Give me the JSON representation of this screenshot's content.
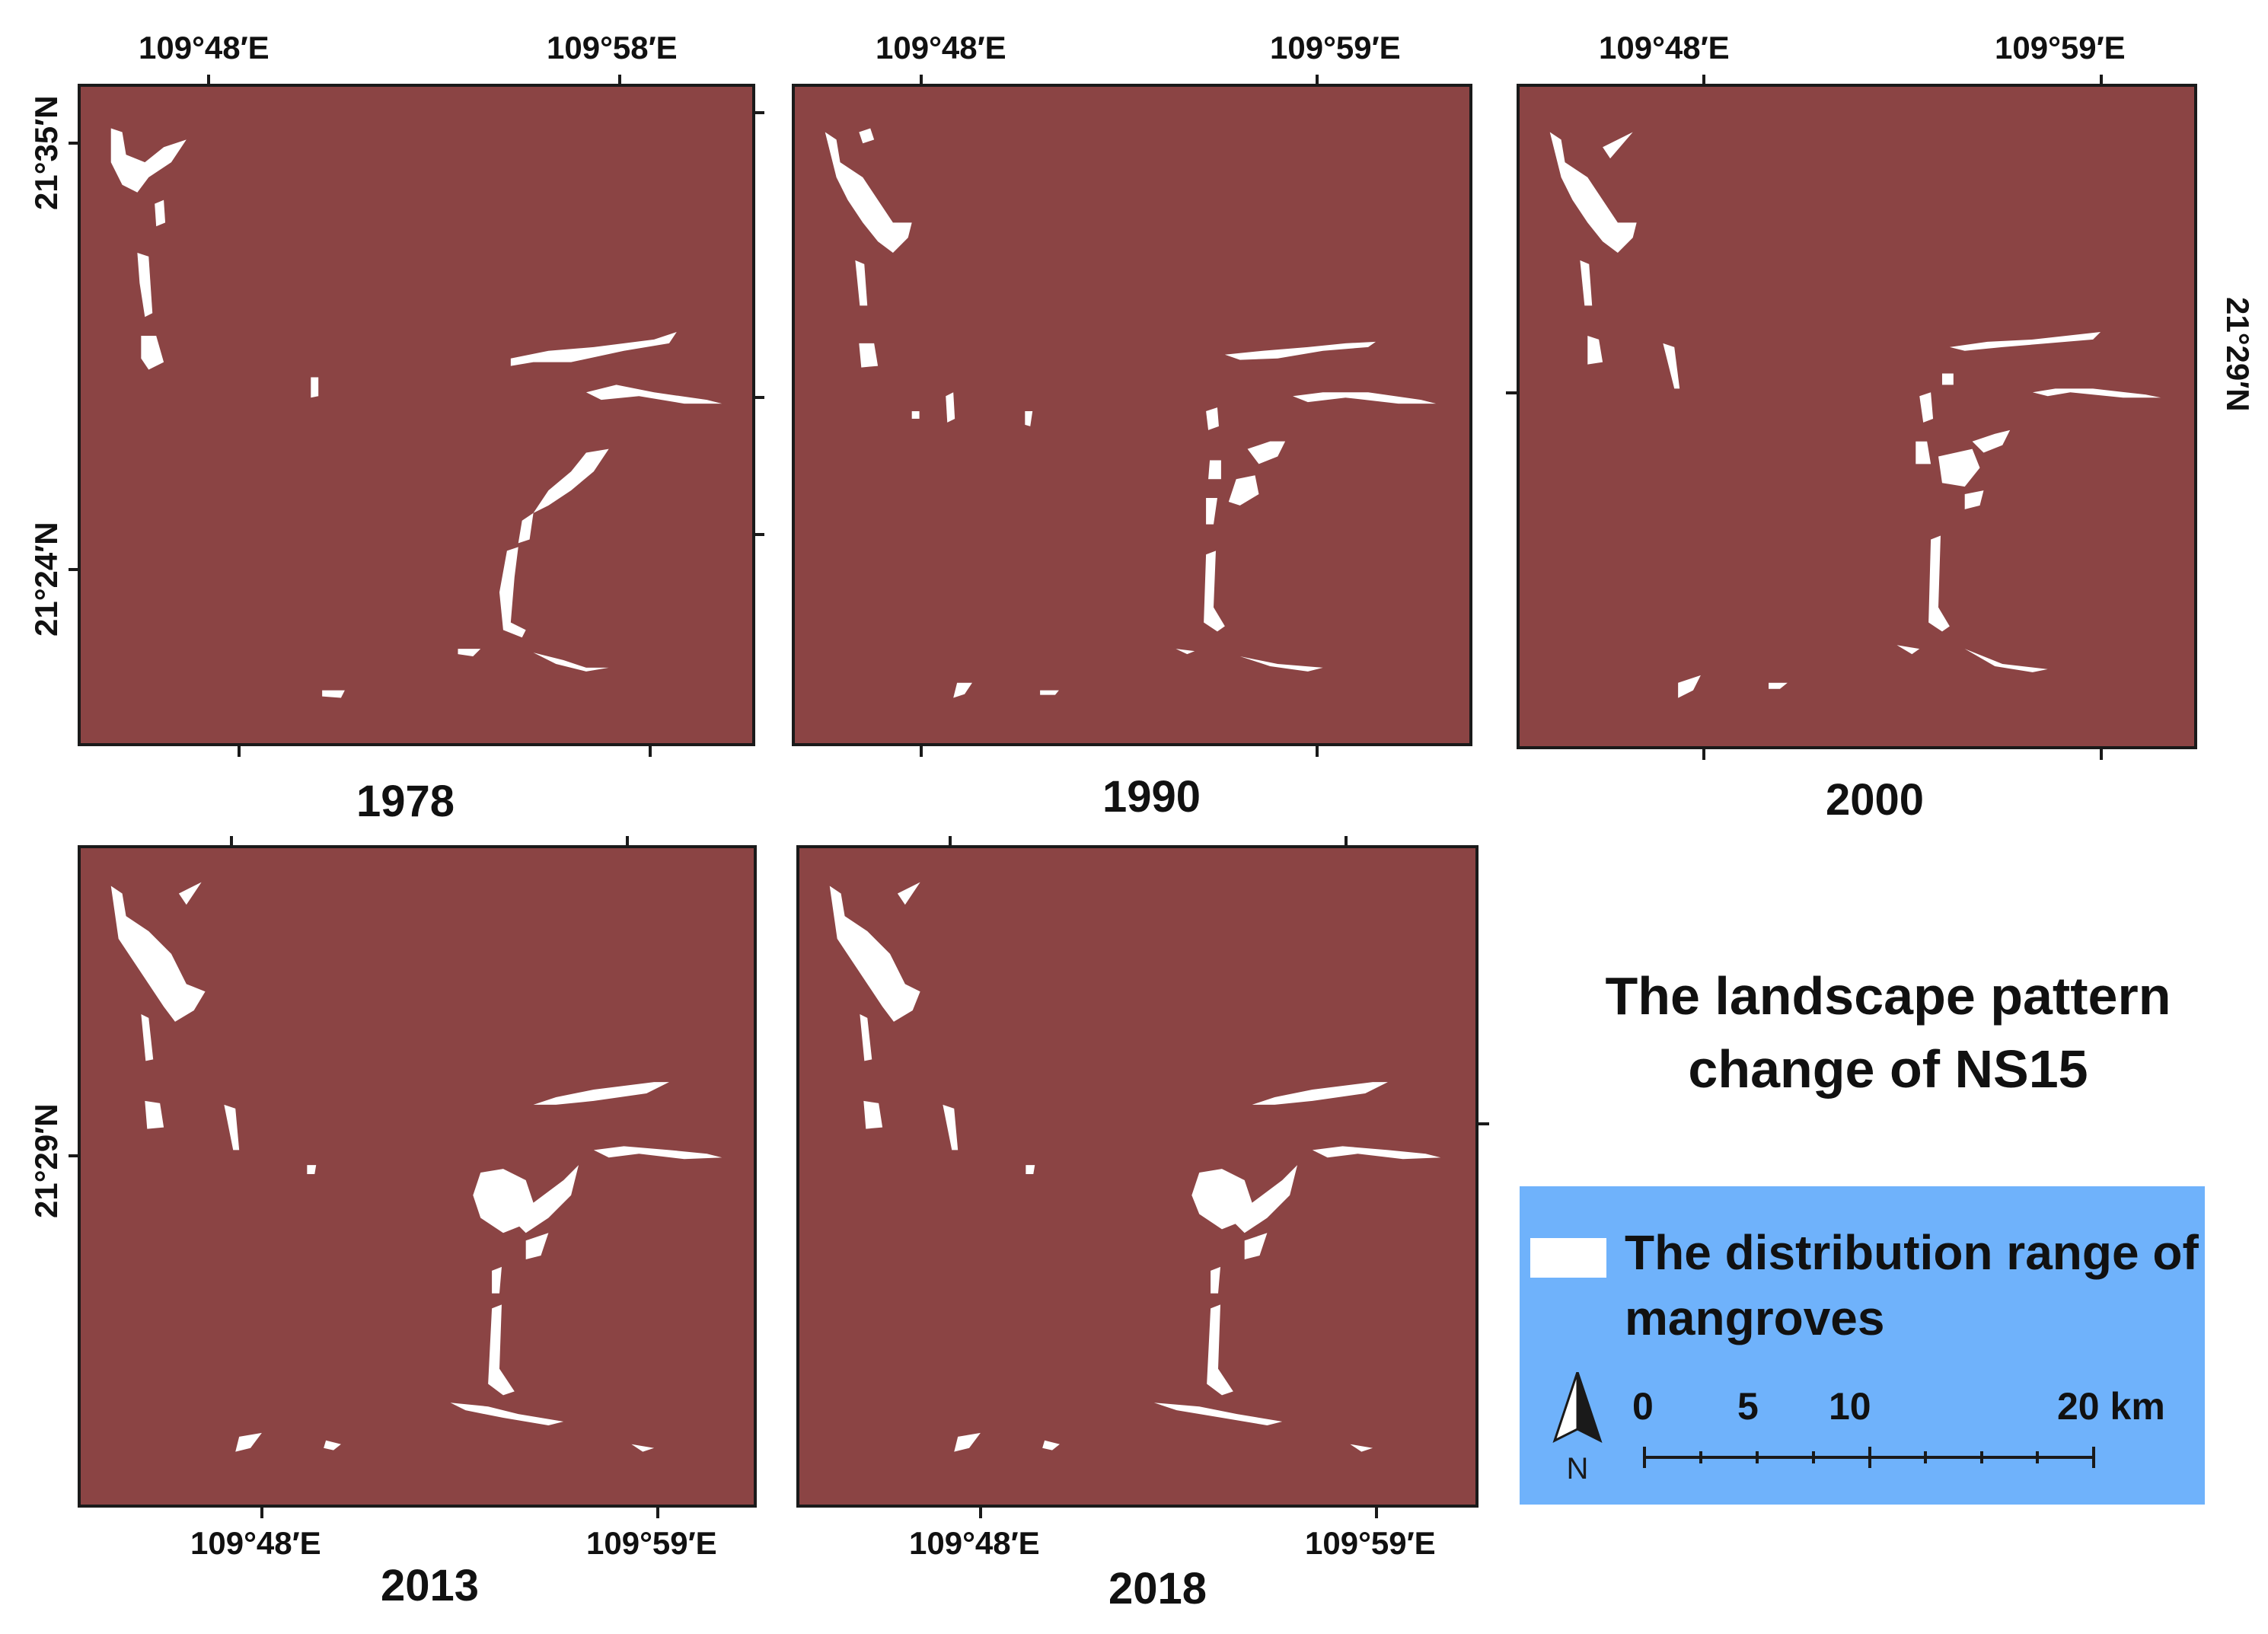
{
  "figure_title": "The landscape pattern change of NS15",
  "panels": [
    {
      "year": "1978",
      "top_labels": [
        "109°48′E",
        "109°58′E"
      ],
      "left_labels": [
        "21°35′N",
        "21°24′N"
      ],
      "right_labels": [],
      "bottom_labels": []
    },
    {
      "year": "1990",
      "top_labels": [
        "109°48′E",
        "109°59′E"
      ],
      "left_labels": [],
      "right_labels": [],
      "bottom_labels": []
    },
    {
      "year": "2000",
      "top_labels": [
        "109°48′E",
        "109°59′E"
      ],
      "left_labels": [],
      "right_labels": [
        "21°29′N"
      ],
      "bottom_labels": []
    },
    {
      "year": "2013",
      "top_labels": [],
      "left_labels": [
        "21°29′N"
      ],
      "right_labels": [],
      "bottom_labels": [
        "109°48′E",
        "109°59′E"
      ]
    },
    {
      "year": "2018",
      "top_labels": [],
      "left_labels": [],
      "right_labels": [],
      "bottom_labels": [
        "109°48′E",
        "109°59′E"
      ]
    }
  ],
  "legend": {
    "label": "The distribution range of mangroves",
    "swatch_color": "#ffffff",
    "background_color": "#6fb2fb",
    "north_arrow_label": "N",
    "north_arrow_icon": "north-arrow-icon",
    "scale_bar": {
      "labels": [
        "0",
        "5",
        "10",
        "20 km"
      ]
    }
  },
  "colors": {
    "background_area": "#8b4444",
    "mangrove": "#ffffff"
  }
}
